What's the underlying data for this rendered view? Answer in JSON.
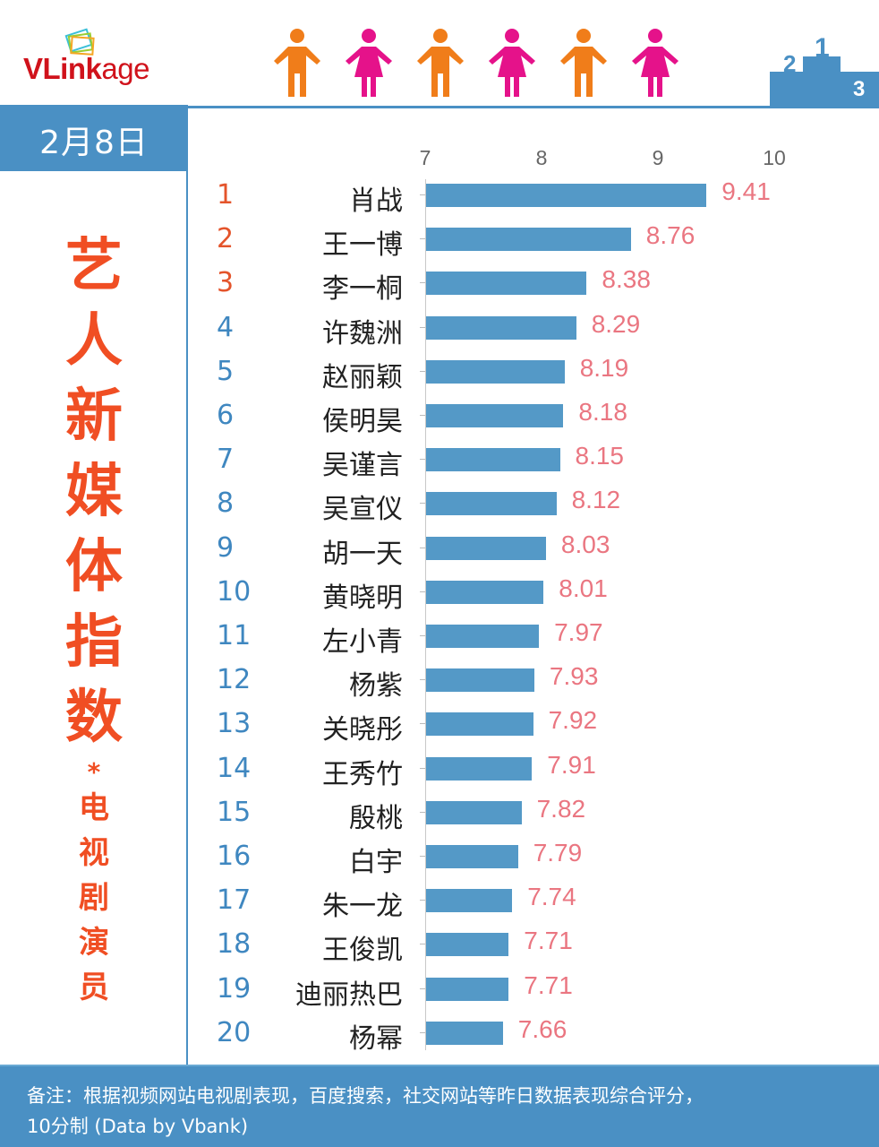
{
  "header": {
    "logo_bold": "VLink",
    "logo_thin": "age",
    "figures": [
      "male-figure-icon",
      "female-figure-icon",
      "male-figure-icon",
      "female-figure-icon",
      "male-figure-icon",
      "female-figure-icon"
    ],
    "figure_colors": {
      "male": "#f07d1a",
      "female": "#e5128a"
    },
    "podium_labels": [
      "2",
      "1",
      "3"
    ]
  },
  "date": "2月8日",
  "side_title": {
    "main": [
      "艺",
      "人",
      "新",
      "媒",
      "体",
      "指",
      "数"
    ],
    "separator": "*",
    "sub": [
      "电",
      "视",
      "剧",
      "演",
      "员"
    ]
  },
  "colors": {
    "brand_blue": "#4a90c4",
    "bar": "#5499c7",
    "value_label": "#ea7681",
    "rank_top3": "#e4542b",
    "rank_other": "#3f87c0",
    "title_orange": "#f04e23"
  },
  "chart_data": {
    "type": "bar",
    "orientation": "horizontal",
    "title": "艺人新媒体指数 * 电视剧演员",
    "subtitle": "2月8日",
    "xlabel": "",
    "ylabel": "",
    "xlim": [
      7,
      10
    ],
    "x_ticks": [
      "7",
      "8",
      "9",
      "10"
    ],
    "grid": false,
    "legend": null,
    "categories": [
      "肖战",
      "王一博",
      "李一桐",
      "许魏洲",
      "赵丽颖",
      "侯明昊",
      "吴谨言",
      "吴宣仪",
      "胡一天",
      "黄晓明",
      "左小青",
      "杨紫",
      "关晓彤",
      "王秀竹",
      "殷桃",
      "白宇",
      "朱一龙",
      "王俊凯",
      "迪丽热巴",
      "杨幂"
    ],
    "ranks": [
      "1",
      "2",
      "3",
      "4",
      "5",
      "6",
      "7",
      "8",
      "9",
      "10",
      "11",
      "12",
      "13",
      "14",
      "15",
      "16",
      "17",
      "18",
      "19",
      "20"
    ],
    "values": [
      9.41,
      8.76,
      8.38,
      8.29,
      8.19,
      8.18,
      8.15,
      8.12,
      8.03,
      8.01,
      7.97,
      7.93,
      7.92,
      7.91,
      7.82,
      7.79,
      7.74,
      7.71,
      7.71,
      7.66
    ],
    "value_labels": [
      "9.41",
      "8.76",
      "8.38",
      "8.29",
      "8.19",
      "8.18",
      "8.15",
      "8.12",
      "8.03",
      "8.01",
      "7.97",
      "7.93",
      "7.92",
      "7.91",
      "7.82",
      "7.79",
      "7.74",
      "7.71",
      "7.71",
      "7.66"
    ]
  },
  "footer": {
    "line1": "备注：根据视频网站电视剧表现，百度搜索，社交网站等昨日数据表现综合评分，",
    "line2": "10分制 (Data by Vbank)"
  }
}
